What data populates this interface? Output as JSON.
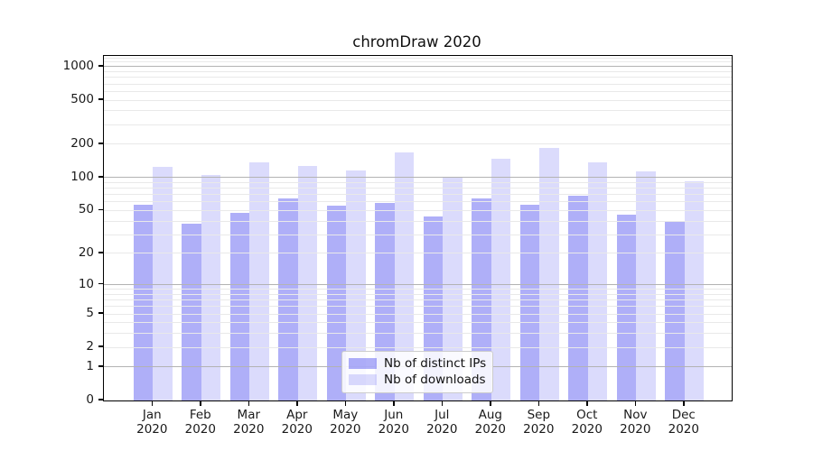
{
  "title": "chromDraw 2020",
  "chart_data": {
    "type": "bar",
    "title": "chromDraw 2020",
    "scale": "log1p",
    "categories": [
      "Jan",
      "Feb",
      "Mar",
      "Apr",
      "May",
      "Jun",
      "Jul",
      "Aug",
      "Sep",
      "Oct",
      "Nov",
      "Dec"
    ],
    "year_label": "2020",
    "series": [
      {
        "name": "Nb of distinct IPs",
        "color": "rgba(64,64,238,0.42)",
        "values": [
          57,
          38,
          48,
          64,
          55,
          59,
          44,
          64,
          57,
          68,
          46,
          39
        ]
      },
      {
        "name": "Nb of downloads",
        "color": "rgba(64,64,238,0.19)",
        "values": [
          126,
          105,
          138,
          128,
          115,
          168,
          100,
          149,
          187,
          138,
          114,
          93
        ]
      }
    ],
    "y_ticks": [
      0,
      1,
      2,
      5,
      10,
      20,
      50,
      100,
      200,
      500,
      1000
    ],
    "major_grid_values": [
      1,
      10,
      100,
      1000
    ],
    "ylim": [
      0,
      1250
    ],
    "xlabel": "",
    "ylabel": "",
    "grid": true,
    "legend_position": "lower center",
    "colors": {
      "major_grid": "#b3b3b3",
      "minor_grid": "#e9e9e9",
      "spine": "#000000",
      "text": "#1a1a1a"
    }
  }
}
